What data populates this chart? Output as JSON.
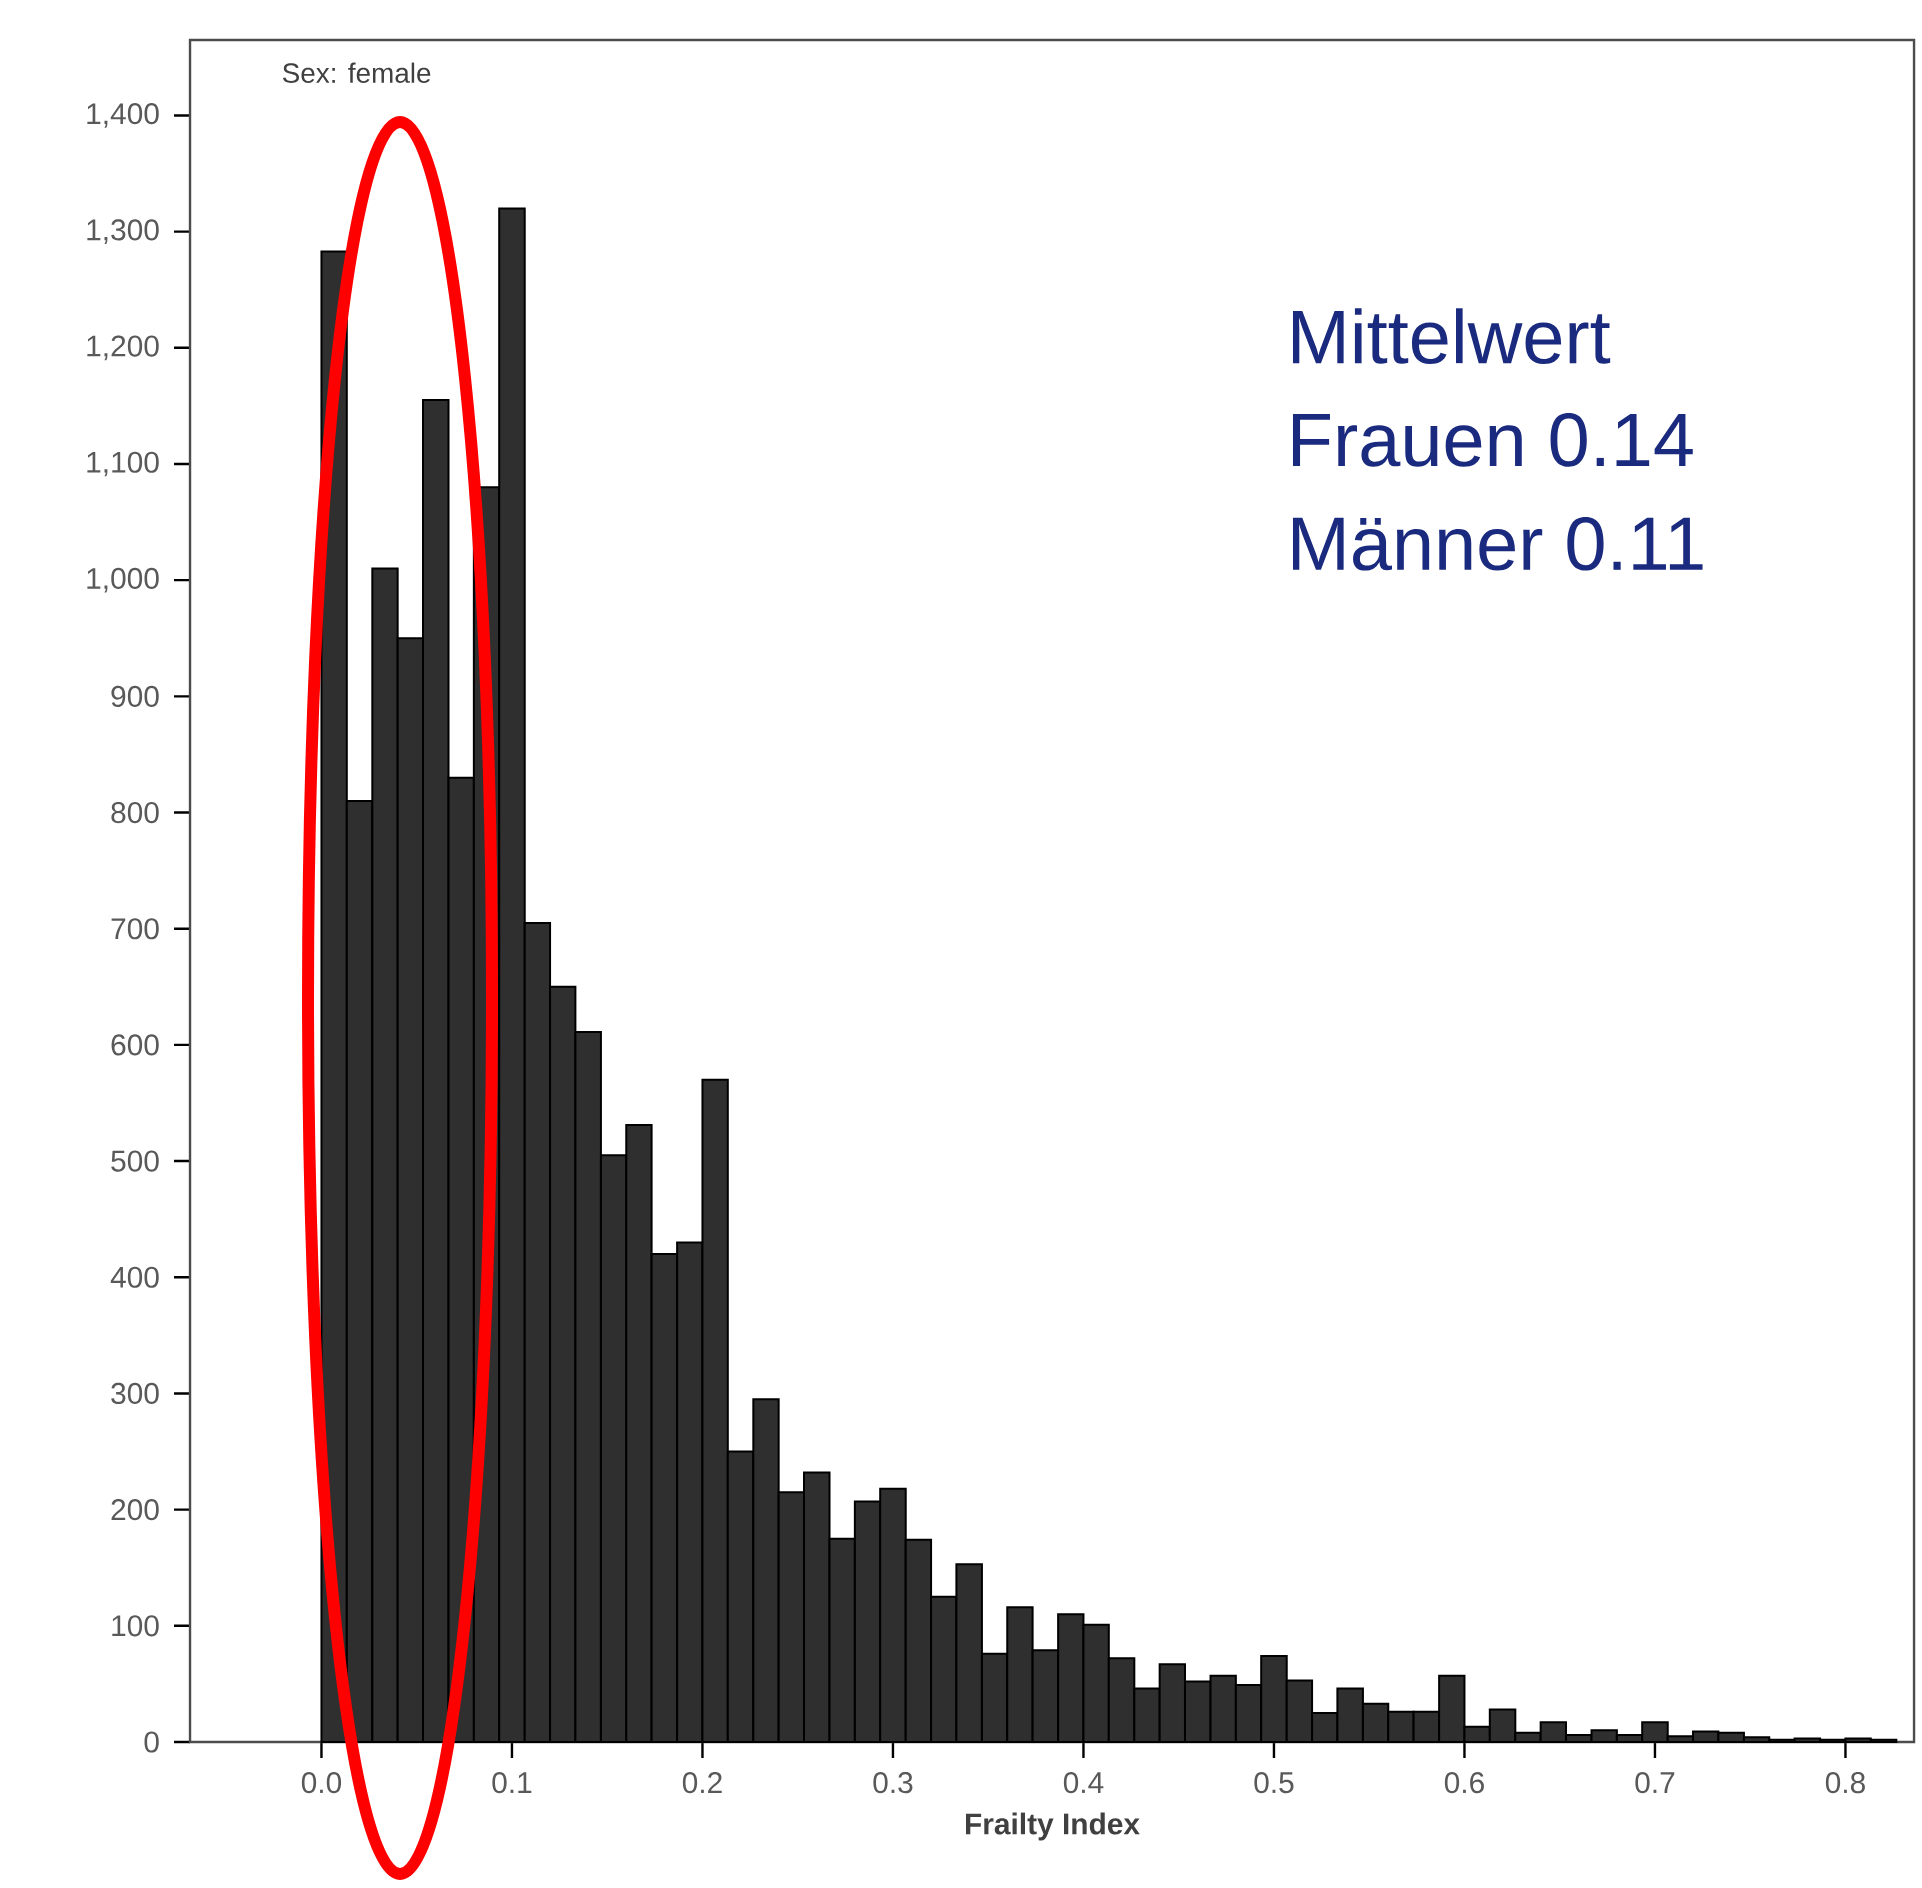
{
  "chart_data": {
    "type": "histogram",
    "xlabel": "Frailty Index",
    "bins": [
      0,
      0.0133,
      0.0267,
      0.04,
      0.0533,
      0.0667,
      0.08,
      0.0933,
      0.1067,
      0.12,
      0.1333,
      0.1467,
      0.16,
      0.1733,
      0.1867,
      0.2,
      0.2133,
      0.2267,
      0.24,
      0.2533,
      0.2667,
      0.28,
      0.2933,
      0.3067,
      0.32,
      0.3333,
      0.3467,
      0.36,
      0.3733,
      0.3867,
      0.4,
      0.4133,
      0.4267,
      0.44,
      0.4533,
      0.4667,
      0.48,
      0.4933,
      0.5067,
      0.52,
      0.5333,
      0.5467,
      0.56,
      0.5733,
      0.5867,
      0.6,
      0.6133,
      0.6267,
      0.64,
      0.6533,
      0.6667,
      0.68,
      0.6933,
      0.7067,
      0.72,
      0.7333,
      0.7467,
      0.76,
      0.7733,
      0.7867,
      0.8,
      0.8133,
      0.8267
    ],
    "values": [
      1283,
      810,
      1010,
      950,
      1155,
      830,
      1080,
      1320,
      705,
      650,
      611,
      505,
      531,
      420,
      430,
      570,
      250,
      295,
      215,
      232,
      175,
      207,
      218,
      174,
      125,
      153,
      76,
      116,
      79,
      110,
      101,
      72,
      46,
      67,
      52,
      57,
      49,
      74,
      53,
      25,
      46,
      33,
      26,
      26,
      57,
      13,
      28,
      8,
      17,
      6,
      10,
      6,
      17,
      5,
      9,
      8,
      4,
      2,
      3,
      2,
      3,
      2
    ],
    "color": "#2f2f2f",
    "xlim": [
      -0.069,
      0.836
    ],
    "ylim": [
      0,
      1465
    ],
    "xticks": [
      {
        "value": 0,
        "label": "0.0"
      },
      0.1,
      0.2,
      0.3,
      0.4,
      0.5,
      0.6,
      0.7,
      0.8
    ],
    "yticks": [
      0,
      100,
      200,
      300,
      400,
      500,
      600,
      700,
      800,
      900,
      {
        "value": 1000,
        "label": "1,000"
      },
      {
        "value": 1100,
        "label": "1,100"
      },
      {
        "value": 1200,
        "label": "1,200"
      },
      {
        "value": 1300,
        "label": "1,300"
      },
      {
        "value": 1400,
        "label": "1,400"
      }
    ],
    "grid": false,
    "annotations": [
      "Sex: female",
      "Mittelwert",
      "Frauen 0.14",
      "Männer 0.11"
    ]
  }
}
